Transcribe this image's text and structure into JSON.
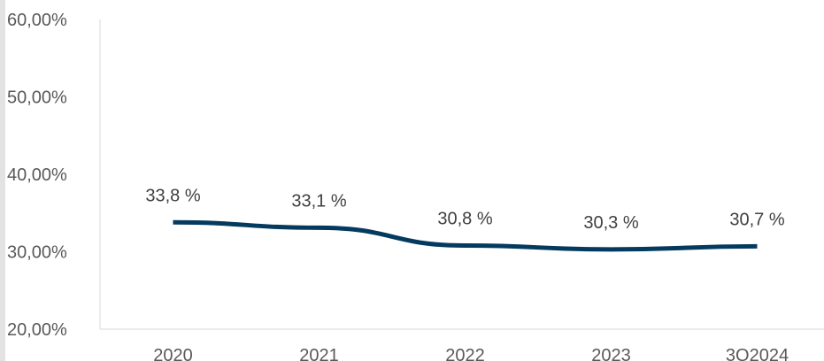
{
  "chart_data": {
    "type": "line",
    "categories": [
      "2020",
      "2021",
      "2022",
      "2023",
      "3Q2024"
    ],
    "series": [
      {
        "values": [
          33.8,
          33.1,
          30.8,
          30.3,
          30.7
        ],
        "color": "#053a5f"
      }
    ],
    "data_labels": [
      "33,8 %",
      "33,1 %",
      "30,8 %",
      "30,3 %",
      "30,7 %"
    ],
    "ylim": [
      20,
      60
    ],
    "yticks": [
      20,
      30,
      40,
      50,
      60
    ],
    "ytick_labels": [
      "20,00%",
      "30,00%",
      "40,00%",
      "50,00%",
      "60,00%"
    ],
    "title": "",
    "xlabel": "",
    "ylabel": "",
    "grid": false,
    "legend": "none"
  }
}
